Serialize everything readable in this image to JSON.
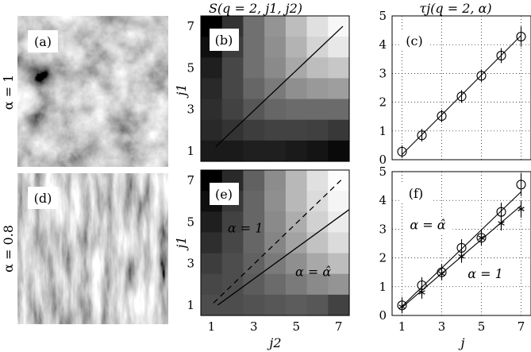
{
  "chart_data": [
    {
      "id": "a",
      "type": "image",
      "panel_label": "(a)",
      "row_label": "α = 1",
      "texture": "isotropic"
    },
    {
      "id": "b",
      "type": "heatmap",
      "panel_label": "(b)",
      "title": "S(q = 2, j1, j2)",
      "xlabel": "",
      "ylabel": "j1",
      "x_ticks": [
        1,
        3,
        5,
        7
      ],
      "y_ticks": [
        1,
        3,
        5,
        7
      ],
      "xlim": [
        0.5,
        7.5
      ],
      "ylim": [
        0.5,
        7.5
      ],
      "rows_top_to_bottom": [
        [
          0.0,
          0.2,
          0.44,
          0.58,
          0.74,
          0.88,
          0.97
        ],
        [
          0.06,
          0.24,
          0.44,
          0.56,
          0.7,
          0.83,
          0.91
        ],
        [
          0.12,
          0.28,
          0.44,
          0.54,
          0.66,
          0.74,
          0.78
        ],
        [
          0.16,
          0.28,
          0.4,
          0.48,
          0.56,
          0.6,
          0.62
        ],
        [
          0.18,
          0.26,
          0.34,
          0.4,
          0.42,
          0.42,
          0.42
        ],
        [
          0.16,
          0.2,
          0.24,
          0.26,
          0.26,
          0.25,
          0.22
        ],
        [
          0.1,
          0.1,
          0.12,
          0.12,
          0.1,
          0.08,
          0.04
        ]
      ],
      "lines": [
        {
          "x": [
            1.2,
            7.2
          ],
          "y": [
            1.2,
            7.0
          ],
          "style": "solid"
        }
      ]
    },
    {
      "id": "c",
      "type": "line",
      "panel_label": "(c)",
      "title": "τj(q = 2, α)",
      "xlim": [
        0.5,
        7.5
      ],
      "ylim": [
        0,
        5
      ],
      "x_ticks": [
        1,
        3,
        5,
        7
      ],
      "y_ticks": [
        0,
        1,
        2,
        3,
        4,
        5
      ],
      "grid": true,
      "series": [
        {
          "marker": "circle",
          "x": [
            1,
            2,
            3,
            4,
            5,
            6,
            7
          ],
          "y": [
            0.28,
            0.85,
            1.52,
            2.2,
            2.92,
            3.62,
            4.28
          ],
          "err": [
            0.22,
            0.22,
            0.22,
            0.22,
            0.22,
            0.26,
            0.35
          ]
        }
      ],
      "fit_lines": [
        {
          "x": [
            1,
            7
          ],
          "y": [
            0.18,
            4.32
          ]
        }
      ]
    },
    {
      "id": "d",
      "type": "image",
      "panel_label": "(d)",
      "row_label": "α = 0.8",
      "texture": "anisotropic-vertical"
    },
    {
      "id": "e",
      "type": "heatmap",
      "panel_label": "(e)",
      "xlabel": "j2",
      "ylabel": "j1",
      "x_ticks": [
        1,
        3,
        5,
        7
      ],
      "y_ticks": [
        1,
        3,
        5,
        7
      ],
      "xlim": [
        0.5,
        7.5
      ],
      "ylim": [
        0.5,
        7.5
      ],
      "rows_top_to_bottom": [
        [
          0.0,
          0.16,
          0.38,
          0.55,
          0.72,
          0.88,
          0.99
        ],
        [
          0.06,
          0.22,
          0.4,
          0.56,
          0.72,
          0.86,
          0.96
        ],
        [
          0.12,
          0.26,
          0.4,
          0.54,
          0.68,
          0.82,
          0.92
        ],
        [
          0.18,
          0.28,
          0.4,
          0.52,
          0.64,
          0.76,
          0.86
        ],
        [
          0.24,
          0.3,
          0.38,
          0.48,
          0.56,
          0.66,
          0.74
        ],
        [
          0.28,
          0.3,
          0.36,
          0.42,
          0.48,
          0.54,
          0.58
        ],
        [
          0.3,
          0.3,
          0.32,
          0.34,
          0.36,
          0.34,
          0.26
        ]
      ],
      "lines": [
        {
          "x": [
            1.1,
            7.2
          ],
          "y": [
            1.1,
            7.1
          ],
          "style": "dashed"
        },
        {
          "x": [
            1.3,
            7.5
          ],
          "y": [
            1.0,
            5.6
          ],
          "style": "solid"
        }
      ],
      "annotations": [
        {
          "text": "α = 1",
          "x": 2.6,
          "y": 4.5
        },
        {
          "text": "α = α̂",
          "x": 5.8,
          "y": 2.4
        }
      ]
    },
    {
      "id": "f",
      "type": "line",
      "panel_label": "(f)",
      "xlabel": "j",
      "xlim": [
        0.5,
        7.5
      ],
      "ylim": [
        0,
        5
      ],
      "x_ticks": [
        1,
        3,
        5,
        7
      ],
      "y_ticks": [
        0,
        1,
        2,
        3,
        4,
        5
      ],
      "grid": true,
      "series": [
        {
          "marker": "circle",
          "x": [
            1,
            2,
            3,
            4,
            5,
            6,
            7
          ],
          "y": [
            0.35,
            1.05,
            1.5,
            2.35,
            2.7,
            3.6,
            4.55
          ],
          "err": [
            0.28,
            0.28,
            0.28,
            0.3,
            0.28,
            0.32,
            0.4
          ]
        },
        {
          "marker": "star",
          "x": [
            1,
            2,
            3,
            4,
            5,
            6,
            7
          ],
          "y": [
            0.3,
            0.8,
            1.45,
            2.05,
            2.7,
            3.2,
            3.7
          ],
          "err": [
            0.22,
            0.22,
            0.22,
            0.22,
            0.22,
            0.25,
            0.3
          ]
        }
      ],
      "fit_lines": [
        {
          "x": [
            1,
            7
          ],
          "y": [
            0.32,
            4.3
          ]
        },
        {
          "x": [
            1,
            7
          ],
          "y": [
            0.28,
            3.82
          ]
        }
      ],
      "annotations": [
        {
          "text": "α = α̂",
          "x": 2.3,
          "y": 3.0
        },
        {
          "text": "α = 1",
          "x": 5.2,
          "y": 1.3
        }
      ]
    }
  ]
}
